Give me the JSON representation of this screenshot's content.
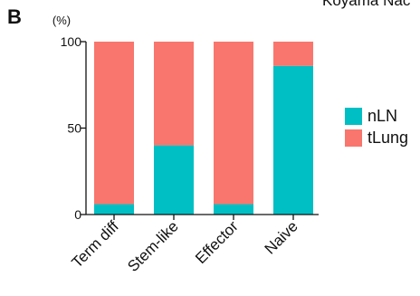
{
  "panel_label": "B",
  "top_right_text": "Koyama Nac",
  "colors": {
    "nLN": "#00bfc4",
    "tLung": "#f8766d",
    "axis": "#111111"
  },
  "chart_data": {
    "type": "bar",
    "stacked": true,
    "title": "",
    "xlabel": "",
    "ylabel": "(%)",
    "ylim": [
      0,
      100
    ],
    "yticks": [
      0,
      50,
      100
    ],
    "categories": [
      "Term diff",
      "Stem-like",
      "Effector",
      "Naive"
    ],
    "series": [
      {
        "name": "nLN",
        "values": [
          6,
          40,
          6,
          86
        ]
      },
      {
        "name": "tLung",
        "values": [
          94,
          60,
          94,
          14
        ]
      }
    ],
    "legend": "right",
    "grid": false
  }
}
